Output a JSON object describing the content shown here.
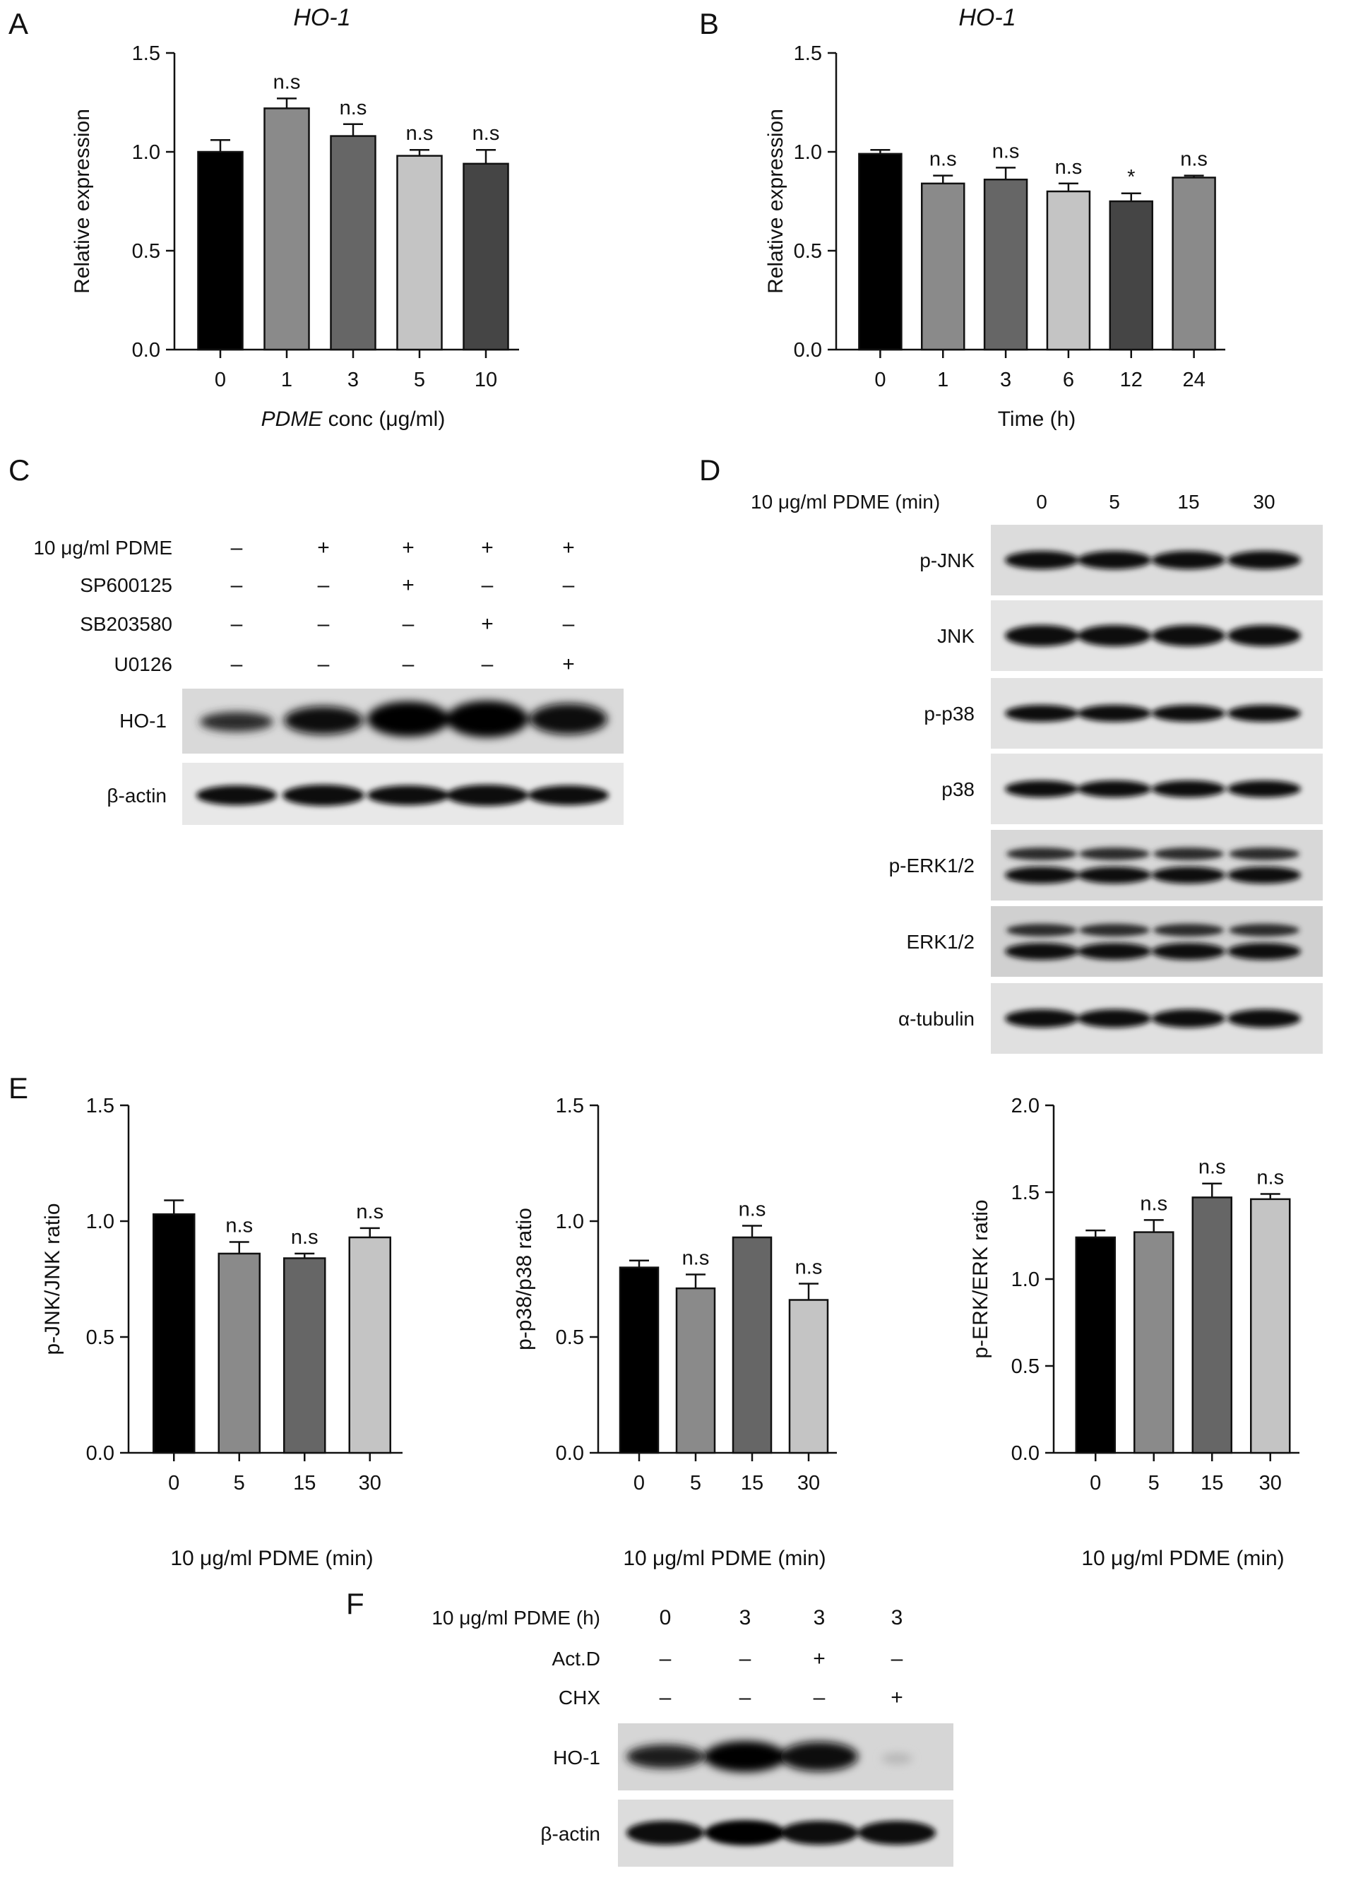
{
  "panels": {
    "A": "A",
    "B": "B",
    "C": "C",
    "D": "D",
    "E": "E",
    "F": "F"
  },
  "chart_data": [
    {
      "id": "A",
      "type": "bar",
      "title": "HO-1",
      "xlabel_italic": "PDME",
      "xlabel_rest": " conc (μg/ml)",
      "ylabel": "Relative expression",
      "ylim": [
        0,
        1.5
      ],
      "yticks": [
        "0.0",
        "0.5",
        "1.0",
        "1.5"
      ],
      "categories": [
        "0",
        "1",
        "3",
        "5",
        "10"
      ],
      "values": [
        1.0,
        1.22,
        1.08,
        0.98,
        0.94
      ],
      "errors": [
        0.06,
        0.05,
        0.06,
        0.03,
        0.07
      ],
      "annotations": [
        "",
        "n.s",
        "n.s",
        "n.s",
        "n.s"
      ],
      "colors": [
        "#000000",
        "#8a8a8a",
        "#666666",
        "#c4c4c4",
        "#454545"
      ]
    },
    {
      "id": "B",
      "type": "bar",
      "title": "HO-1",
      "xlabel": "Time (h)",
      "ylabel": "Relative expression",
      "ylim": [
        0,
        1.5
      ],
      "yticks": [
        "0.0",
        "0.5",
        "1.0",
        "1.5"
      ],
      "categories": [
        "0",
        "1",
        "3",
        "6",
        "12",
        "24"
      ],
      "values": [
        0.99,
        0.84,
        0.86,
        0.8,
        0.75,
        0.87
      ],
      "errors": [
        0.02,
        0.04,
        0.06,
        0.04,
        0.04,
        0.01
      ],
      "annotations": [
        "",
        "n.s",
        "n.s",
        "n.s",
        "*",
        "n.s"
      ],
      "colors": [
        "#000000",
        "#8a8a8a",
        "#666666",
        "#c4c4c4",
        "#454545",
        "#8a8a8a"
      ]
    },
    {
      "id": "E1",
      "type": "bar",
      "xlabel": "10 μg/ml PDME (min)",
      "ylabel": "p-JNK/JNK ratio",
      "ylim": [
        0,
        1.5
      ],
      "yticks": [
        "0.0",
        "0.5",
        "1.0",
        "1.5"
      ],
      "categories": [
        "0",
        "5",
        "15",
        "30"
      ],
      "values": [
        1.03,
        0.86,
        0.84,
        0.93
      ],
      "errors": [
        0.06,
        0.05,
        0.02,
        0.04
      ],
      "annotations": [
        "",
        "n.s",
        "n.s",
        "n.s"
      ],
      "colors": [
        "#000000",
        "#8a8a8a",
        "#666666",
        "#c4c4c4"
      ]
    },
    {
      "id": "E2",
      "type": "bar",
      "xlabel": "10 μg/ml PDME (min)",
      "ylabel": "p-p38/p38 ratio",
      "ylim": [
        0,
        1.5
      ],
      "yticks": [
        "0.0",
        "0.5",
        "1.0",
        "1.5"
      ],
      "categories": [
        "0",
        "5",
        "15",
        "30"
      ],
      "values": [
        0.8,
        0.71,
        0.93,
        0.66
      ],
      "errors": [
        0.03,
        0.06,
        0.05,
        0.07
      ],
      "annotations": [
        "",
        "n.s",
        "n.s",
        "n.s"
      ],
      "colors": [
        "#000000",
        "#8a8a8a",
        "#666666",
        "#c4c4c4"
      ]
    },
    {
      "id": "E3",
      "type": "bar",
      "xlabel": "10 μg/ml PDME (min)",
      "ylabel": "p-ERK/ERK ratio",
      "ylim": [
        0,
        2.0
      ],
      "yticks": [
        "0.0",
        "0.5",
        "1.0",
        "1.5",
        "2.0"
      ],
      "categories": [
        "0",
        "5",
        "15",
        "30"
      ],
      "values": [
        1.24,
        1.27,
        1.47,
        1.46
      ],
      "errors": [
        0.04,
        0.07,
        0.08,
        0.03
      ],
      "annotations": [
        "",
        "n.s",
        "n.s",
        "n.s"
      ],
      "colors": [
        "#000000",
        "#8a8a8a",
        "#666666",
        "#c4c4c4"
      ]
    }
  ],
  "blot_C": {
    "rows": [
      {
        "label": "10 μg/ml PDME",
        "signs": [
          "–",
          "+",
          "+",
          "+",
          "+"
        ]
      },
      {
        "label": "SP600125",
        "signs": [
          "–",
          "–",
          "+",
          "–",
          "–"
        ]
      },
      {
        "label": "SB203580",
        "signs": [
          "–",
          "–",
          "–",
          "+",
          "–"
        ]
      },
      {
        "label": "U0126",
        "signs": [
          "–",
          "–",
          "–",
          "–",
          "+"
        ]
      }
    ],
    "blots": [
      "HO-1",
      "β-actin"
    ]
  },
  "blot_D": {
    "header_label": "10 μg/ml PDME (min)",
    "lanes": [
      "0",
      "5",
      "15",
      "30"
    ],
    "blots": [
      "p-JNK",
      "JNK",
      "p-p38",
      "p38",
      "p-ERK1/2",
      "ERK1/2",
      "α-tubulin"
    ]
  },
  "blot_F": {
    "rows": [
      {
        "label": "10 μg/ml PDME (h)",
        "signs": [
          "0",
          "3",
          "3",
          "3"
        ]
      },
      {
        "label": "Act.D",
        "signs": [
          "–",
          "–",
          "+",
          "–"
        ]
      },
      {
        "label": "CHX",
        "signs": [
          "–",
          "–",
          "–",
          "+"
        ]
      }
    ],
    "blots": [
      "HO-1",
      "β-actin"
    ]
  }
}
